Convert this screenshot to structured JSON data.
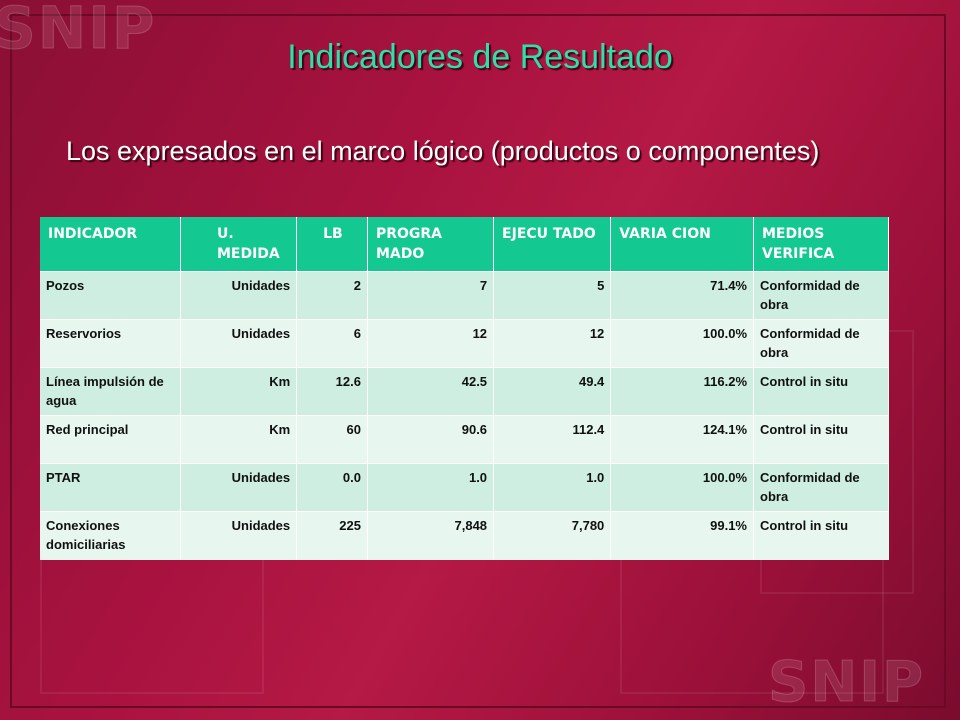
{
  "slide": {
    "logo_text": "SNIP",
    "title": "Indicadores de Resultado",
    "subtitle": "Los expresados en el marco lógico (productos o componentes)"
  },
  "table": {
    "headers": [
      "INDICADOR",
      "U. MEDIDA",
      "LB",
      "PROGRA MADO",
      "EJECU TADO",
      "VARIA CION",
      "MEDIOS VERIFICA"
    ],
    "rows": [
      [
        "Pozos",
        "Unidades",
        "2",
        "7",
        "5",
        "71.4%",
        "Conformidad de obra"
      ],
      [
        "Reservorios",
        "Unidades",
        "6",
        "12",
        "12",
        "100.0%",
        "Conformidad de obra"
      ],
      [
        "Línea impulsión de agua",
        "Km",
        "12.6",
        "42.5",
        "49.4",
        "116.2%",
        "Control in situ"
      ],
      [
        "Red principal",
        "Km",
        "60",
        "90.6",
        "112.4",
        "124.1%",
        "Control in situ"
      ],
      [
        "PTAR",
        "Unidades",
        "0.0",
        "1.0",
        "1.0",
        "100.0%",
        "Conformidad de obra"
      ],
      [
        "Conexiones domiciliarias",
        "Unidades",
        "225",
        "7,848",
        "7,780",
        "99.1%",
        "Control in situ"
      ]
    ]
  },
  "colors": {
    "background": "#a8123f",
    "title": "#2ee0a8",
    "header_fill": "#14c991",
    "row_fill_a": "#cdeee1",
    "row_fill_b": "#e8f6f0"
  }
}
